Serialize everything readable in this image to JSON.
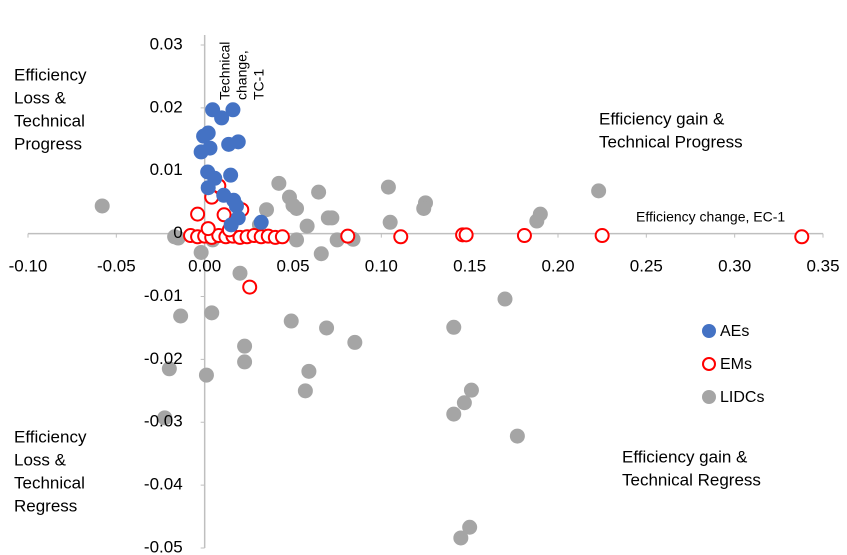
{
  "chart_data": {
    "type": "scatter",
    "annotations": [
      [
        "Efficiency",
        "Loss &",
        "Technical",
        "Progress"
      ],
      [
        "Efficiency gain &",
        "Technical Progress"
      ],
      [
        "Efficiency",
        "Loss &",
        "Technical",
        "Regress"
      ],
      [
        "Efficiency gain &",
        "Technical Regress"
      ]
    ],
    "x_label": "Efficiency change, EC-1",
    "y_label": [
      "Technical",
      "change,",
      "TC-1"
    ],
    "xlim": [
      -0.1,
      0.35
    ],
    "ylim": [
      -0.05,
      0.03
    ],
    "xticks": [
      {
        "value": -0.1,
        "label": "-0.10"
      },
      -0.05,
      {
        "value": 0,
        "label": "0.00"
      },
      0.05,
      {
        "value": 0.1,
        "label": "0.10"
      },
      0.15,
      {
        "value": 0.2,
        "label": "0.20"
      },
      0.25,
      {
        "value": 0.3,
        "label": "0.30"
      },
      0.35
    ],
    "yticks": [
      0.03,
      0.02,
      0.01,
      0,
      -0.01,
      -0.02,
      -0.03,
      -0.04,
      -0.05
    ],
    "legend": "center right",
    "series": [
      {
        "name": "AEs",
        "color": "#4472c4",
        "filled": true,
        "x": [
          0.0045,
          0.016,
          0.0096,
          0.002,
          -0.0006,
          0.003,
          -0.002,
          0.0136,
          0.019,
          0.0017,
          0.0057,
          0.0147,
          0.0108,
          0.0164,
          0.002,
          0.018,
          0.019,
          0.015,
          0.032
        ],
        "y": [
          0.0197,
          0.0197,
          0.0184,
          0.016,
          0.0155,
          0.0136,
          0.013,
          0.0142,
          0.0146,
          0.0098,
          0.0088,
          0.0093,
          0.0061,
          0.0053,
          0.0073,
          0.0044,
          0.0025,
          0.0014,
          0.0018
        ]
      },
      {
        "name": "EMs",
        "color": "#ff0000",
        "filled": false,
        "x": [
          0.081,
          0.111,
          0.146,
          0.148,
          0.181,
          0.225,
          0.338,
          0.008,
          0.004,
          -0.004,
          0.011,
          0.021,
          0.0255,
          -0.008,
          -0.004,
          0,
          0.004,
          0.008,
          0.012,
          0.016,
          0.02,
          0.024,
          0.028,
          0.032,
          0.036,
          0.04,
          0.044,
          0.002,
          0.014
        ],
        "y": [
          -0.0004,
          -0.0005,
          -0.0002,
          -0.0002,
          -0.0003,
          -0.0003,
          -0.0005,
          0.0076,
          0.0058,
          0.0031,
          0.003,
          0.0038,
          -0.0085,
          -0.0003,
          -0.0005,
          -0.0004,
          -0.0006,
          -0.0003,
          -0.0005,
          -0.0004,
          -0.0006,
          -0.0005,
          -0.0003,
          -0.0005,
          -0.0004,
          -0.0006,
          -0.0005,
          0.0008,
          0.0006
        ]
      },
      {
        "name": "LIDCs",
        "color": "#a5a5a5",
        "filled": true,
        "x": [
          -0.058,
          0.042,
          0.048,
          0.05,
          0.052,
          0.0645,
          0.07,
          0.072,
          0.104,
          0.105,
          0.125,
          0.124,
          0.19,
          0.188,
          0.223,
          0.035,
          0.031,
          0.058,
          0.066,
          0.075,
          0.084,
          0.052,
          0.02,
          -0.015,
          -0.002,
          0.0045,
          -0.0136,
          0.004,
          0.049,
          0.069,
          0.085,
          0.17,
          0.141,
          0.0226,
          0.0226,
          0.059,
          0.057,
          -0.02,
          0.001,
          -0.0226,
          0.141,
          0.147,
          0.151,
          0.177,
          0.15,
          0.145,
          -0.017
        ],
        "y": [
          0.0044,
          0.008,
          0.0058,
          0.0045,
          0.004,
          0.0066,
          0.0025,
          0.0025,
          0.0074,
          0.0018,
          0.0049,
          0.004,
          0.0031,
          0.002,
          0.0068,
          0.0038,
          0.0014,
          0.0012,
          -0.0032,
          -0.001,
          -0.0009,
          -0.001,
          -0.0063,
          -0.0007,
          -0.003,
          -0.001,
          -0.0131,
          -0.0126,
          -0.0139,
          -0.015,
          -0.0173,
          -0.0104,
          -0.0149,
          -0.0179,
          -0.0204,
          -0.0219,
          -0.025,
          -0.0215,
          -0.0225,
          -0.0293,
          -0.0287,
          -0.0269,
          -0.0249,
          -0.0322,
          -0.0467,
          -0.0484,
          -0.0005
        ]
      }
    ]
  }
}
